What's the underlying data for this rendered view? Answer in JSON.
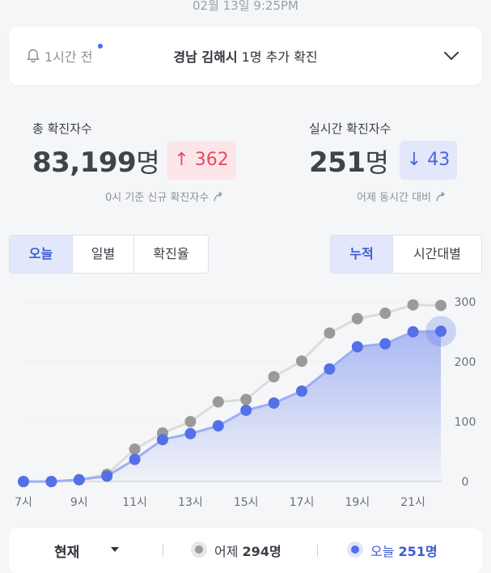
{
  "header": {
    "timestamp": "02월 13일 9:25PM"
  },
  "notice": {
    "ago": "1시간 전",
    "region": "경남 김해시",
    "detail": "1명 추가 확진",
    "accent": "#4a6cf0"
  },
  "stats": {
    "total": {
      "label": "총 확진자수",
      "value": "83,199",
      "unit": "명",
      "delta": "↑ 362",
      "note": "0시 기준 신규 확진자수"
    },
    "realtime": {
      "label": "실시간 확진자수",
      "value": "251",
      "unit": "명",
      "delta": "↓ 43",
      "note": "어제 동시간 대비"
    }
  },
  "tabs_left": [
    "오늘",
    "일별",
    "확진율"
  ],
  "tabs_right": [
    "누적",
    "시간대별"
  ],
  "chart_data": {
    "type": "line",
    "x": [
      7,
      8,
      9,
      10,
      11,
      12,
      13,
      14,
      15,
      16,
      17,
      18,
      19,
      20,
      21,
      22
    ],
    "x_tick_labels": [
      "7시",
      "9시",
      "11시",
      "13시",
      "15시",
      "17시",
      "19시",
      "21시"
    ],
    "y_ticks": [
      0,
      100,
      200,
      300
    ],
    "ylim": [
      0,
      300
    ],
    "grid": true,
    "series": [
      {
        "name": "어제",
        "color": "#9a9a9a",
        "values": [
          0,
          0,
          3,
          12,
          54,
          81,
          100,
          133,
          137,
          175,
          201,
          248,
          272,
          281,
          295,
          294
        ]
      },
      {
        "name": "오늘",
        "color": "#5470e8",
        "values": [
          0,
          0,
          3,
          9,
          37,
          70,
          80,
          93,
          119,
          131,
          151,
          188,
          225,
          230,
          250,
          251
        ]
      }
    ]
  },
  "legend": {
    "mode": "현재",
    "yesterday_label": "어제",
    "yesterday_value": "294명",
    "today_label": "오늘",
    "today_value": "251명"
  }
}
